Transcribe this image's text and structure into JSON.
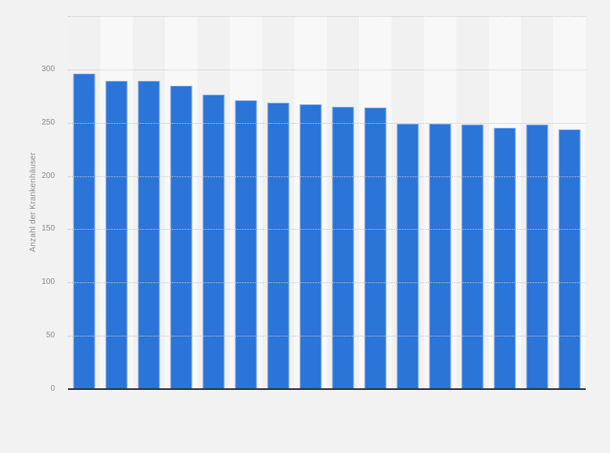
{
  "page": {
    "background_color": "#f2f2f2"
  },
  "chart_data": {
    "type": "bar",
    "title": "",
    "xlabel": "",
    "ylabel": "Anzahl der Krankenhäuser",
    "categories": [],
    "values": [
      296,
      289,
      289,
      285,
      276,
      271,
      269,
      267,
      265,
      264,
      249,
      249,
      248,
      245,
      248,
      244
    ],
    "ylim": [
      0,
      350
    ],
    "yticks": [
      0,
      50,
      100,
      150,
      200,
      250,
      300
    ],
    "gridline_values": [
      50,
      100,
      150,
      200,
      250,
      300,
      350
    ],
    "grid_style": "horizontal-dotted",
    "legend_position": "none",
    "x_axis_labels_visible": false,
    "bar_color": "#2b74d8",
    "bar_edge_highlight": "rgba(255,255,255,0.38)",
    "stripe_color_odd": "#f1f1f1",
    "stripe_color_even": "#f8f8f8",
    "axis_line_color": "#2e2f33",
    "gridline_color": "#c7c7c7",
    "tick_label_color": "#8c8c8c"
  }
}
